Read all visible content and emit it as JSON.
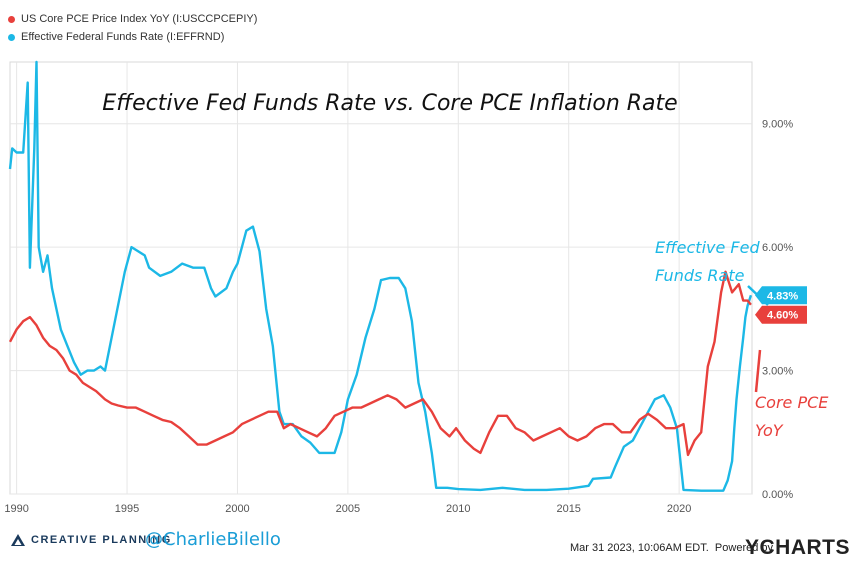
{
  "legend": {
    "series_pce": "US Core PCE Price Index YoY (I:USCCPCEPIY)",
    "series_ffr": "Effective Federal Funds Rate (I:EFFRND)"
  },
  "colors": {
    "pce": "#e8403c",
    "ffr": "#1cb8e6"
  },
  "footer": {
    "brand_text": "CREATIVE PLANNING",
    "handle": "@CharlieBilello",
    "timestamp": "Mar 31 2023, 10:06AM EDT.",
    "powered_by": "Powered by",
    "ycharts": "YCHARTS"
  },
  "chart_data": {
    "type": "line",
    "title": "Effective Fed Funds Rate vs. Core PCE Inflation Rate",
    "xlim": [
      1989.7,
      2023.3
    ],
    "ylim": [
      0,
      10.5
    ],
    "x_ticks": [
      1990,
      1995,
      2000,
      2005,
      2010,
      2015,
      2020
    ],
    "x_tick_labels": [
      "1990",
      "1995",
      "2000",
      "2005",
      "2010",
      "2015",
      "2020"
    ],
    "y_ticks": [
      0,
      3,
      6,
      9
    ],
    "y_tick_labels": [
      "0.00%",
      "3.00%",
      "6.00%",
      "9.00%"
    ],
    "grid": true,
    "legend_position": "top-left",
    "annotations": {
      "ffr_label_line1": "Effective Fed",
      "ffr_label_line2": "Funds Rate",
      "pce_label_line1": "Core PCE",
      "pce_label_line2": "YoY",
      "ffr_last_badge": "4.83%",
      "pce_last_badge": "4.60%"
    },
    "series": [
      {
        "name": "Effective Federal Funds Rate (I:EFFRND)",
        "color": "#1cb8e6",
        "points": [
          [
            1989.7,
            7.9
          ],
          [
            1989.8,
            8.4
          ],
          [
            1990.0,
            8.3
          ],
          [
            1990.3,
            8.3
          ],
          [
            1990.5,
            10.0
          ],
          [
            1990.6,
            5.5
          ],
          [
            1990.8,
            8.4
          ],
          [
            1990.9,
            10.5
          ],
          [
            1991.0,
            6.0
          ],
          [
            1991.2,
            5.4
          ],
          [
            1991.4,
            5.8
          ],
          [
            1991.6,
            5.0
          ],
          [
            1991.8,
            4.5
          ],
          [
            1992.0,
            4.0
          ],
          [
            1992.3,
            3.6
          ],
          [
            1992.6,
            3.2
          ],
          [
            1992.9,
            2.9
          ],
          [
            1993.2,
            3.0
          ],
          [
            1993.5,
            3.0
          ],
          [
            1993.8,
            3.1
          ],
          [
            1994.0,
            3.0
          ],
          [
            1994.3,
            3.8
          ],
          [
            1994.6,
            4.6
          ],
          [
            1994.9,
            5.4
          ],
          [
            1995.2,
            6.0
          ],
          [
            1995.5,
            5.9
          ],
          [
            1995.8,
            5.8
          ],
          [
            1996.0,
            5.5
          ],
          [
            1996.5,
            5.3
          ],
          [
            1997.0,
            5.4
          ],
          [
            1997.5,
            5.6
          ],
          [
            1998.0,
            5.5
          ],
          [
            1998.5,
            5.5
          ],
          [
            1998.8,
            5.0
          ],
          [
            1999.0,
            4.8
          ],
          [
            1999.5,
            5.0
          ],
          [
            1999.8,
            5.4
          ],
          [
            2000.0,
            5.6
          ],
          [
            2000.4,
            6.4
          ],
          [
            2000.7,
            6.5
          ],
          [
            2001.0,
            5.9
          ],
          [
            2001.3,
            4.5
          ],
          [
            2001.6,
            3.6
          ],
          [
            2001.9,
            2.0
          ],
          [
            2002.1,
            1.7
          ],
          [
            2002.5,
            1.7
          ],
          [
            2002.9,
            1.4
          ],
          [
            2003.3,
            1.25
          ],
          [
            2003.7,
            1.0
          ],
          [
            2004.0,
            1.0
          ],
          [
            2004.4,
            1.0
          ],
          [
            2004.7,
            1.5
          ],
          [
            2005.0,
            2.3
          ],
          [
            2005.4,
            2.9
          ],
          [
            2005.8,
            3.8
          ],
          [
            2006.2,
            4.5
          ],
          [
            2006.5,
            5.2
          ],
          [
            2006.9,
            5.25
          ],
          [
            2007.3,
            5.25
          ],
          [
            2007.6,
            5.0
          ],
          [
            2007.9,
            4.2
          ],
          [
            2008.2,
            2.7
          ],
          [
            2008.5,
            2.0
          ],
          [
            2008.8,
            1.0
          ],
          [
            2009.0,
            0.15
          ],
          [
            2009.5,
            0.15
          ],
          [
            2010.0,
            0.12
          ],
          [
            2011.0,
            0.1
          ],
          [
            2012.0,
            0.15
          ],
          [
            2013.0,
            0.1
          ],
          [
            2014.0,
            0.1
          ],
          [
            2015.0,
            0.13
          ],
          [
            2015.9,
            0.2
          ],
          [
            2016.1,
            0.37
          ],
          [
            2016.9,
            0.4
          ],
          [
            2017.1,
            0.66
          ],
          [
            2017.5,
            1.15
          ],
          [
            2017.9,
            1.3
          ],
          [
            2018.2,
            1.6
          ],
          [
            2018.5,
            1.9
          ],
          [
            2018.9,
            2.3
          ],
          [
            2019.3,
            2.4
          ],
          [
            2019.6,
            2.1
          ],
          [
            2019.9,
            1.6
          ],
          [
            2020.2,
            0.1
          ],
          [
            2020.6,
            0.09
          ],
          [
            2021.0,
            0.08
          ],
          [
            2021.5,
            0.08
          ],
          [
            2022.0,
            0.08
          ],
          [
            2022.2,
            0.33
          ],
          [
            2022.4,
            0.8
          ],
          [
            2022.5,
            1.6
          ],
          [
            2022.6,
            2.3
          ],
          [
            2022.75,
            3.1
          ],
          [
            2022.9,
            3.8
          ],
          [
            2023.0,
            4.3
          ],
          [
            2023.1,
            4.58
          ],
          [
            2023.25,
            4.83
          ]
        ]
      },
      {
        "name": "US Core PCE Price Index YoY (I:USCCPCEPIY)",
        "color": "#e8403c",
        "points": [
          [
            1989.7,
            3.7
          ],
          [
            1990.0,
            4.0
          ],
          [
            1990.3,
            4.2
          ],
          [
            1990.6,
            4.3
          ],
          [
            1990.9,
            4.1
          ],
          [
            1991.2,
            3.8
          ],
          [
            1991.5,
            3.6
          ],
          [
            1991.8,
            3.5
          ],
          [
            1992.1,
            3.3
          ],
          [
            1992.4,
            3.0
          ],
          [
            1992.7,
            2.9
          ],
          [
            1993.0,
            2.7
          ],
          [
            1993.3,
            2.6
          ],
          [
            1993.6,
            2.5
          ],
          [
            1994.0,
            2.3
          ],
          [
            1994.3,
            2.2
          ],
          [
            1994.6,
            2.15
          ],
          [
            1995.0,
            2.1
          ],
          [
            1995.4,
            2.1
          ],
          [
            1995.8,
            2.0
          ],
          [
            1996.2,
            1.9
          ],
          [
            1996.6,
            1.8
          ],
          [
            1997.0,
            1.75
          ],
          [
            1997.4,
            1.6
          ],
          [
            1997.8,
            1.4
          ],
          [
            1998.2,
            1.2
          ],
          [
            1998.6,
            1.2
          ],
          [
            1999.0,
            1.3
          ],
          [
            1999.4,
            1.4
          ],
          [
            1999.8,
            1.5
          ],
          [
            2000.2,
            1.7
          ],
          [
            2000.6,
            1.8
          ],
          [
            2001.0,
            1.9
          ],
          [
            2001.4,
            2.0
          ],
          [
            2001.8,
            2.0
          ],
          [
            2002.1,
            1.6
          ],
          [
            2002.4,
            1.7
          ],
          [
            2002.8,
            1.6
          ],
          [
            2003.2,
            1.5
          ],
          [
            2003.6,
            1.4
          ],
          [
            2004.0,
            1.6
          ],
          [
            2004.4,
            1.9
          ],
          [
            2004.8,
            2.0
          ],
          [
            2005.2,
            2.1
          ],
          [
            2005.6,
            2.1
          ],
          [
            2006.0,
            2.2
          ],
          [
            2006.4,
            2.3
          ],
          [
            2006.8,
            2.4
          ],
          [
            2007.2,
            2.3
          ],
          [
            2007.6,
            2.1
          ],
          [
            2008.0,
            2.2
          ],
          [
            2008.4,
            2.3
          ],
          [
            2008.8,
            2.0
          ],
          [
            2009.2,
            1.6
          ],
          [
            2009.6,
            1.4
          ],
          [
            2009.9,
            1.6
          ],
          [
            2010.3,
            1.3
          ],
          [
            2010.7,
            1.1
          ],
          [
            2011.0,
            1.0
          ],
          [
            2011.4,
            1.5
          ],
          [
            2011.8,
            1.9
          ],
          [
            2012.2,
            1.9
          ],
          [
            2012.6,
            1.6
          ],
          [
            2013.0,
            1.5
          ],
          [
            2013.4,
            1.3
          ],
          [
            2013.8,
            1.4
          ],
          [
            2014.2,
            1.5
          ],
          [
            2014.6,
            1.6
          ],
          [
            2015.0,
            1.4
          ],
          [
            2015.4,
            1.3
          ],
          [
            2015.8,
            1.4
          ],
          [
            2016.2,
            1.6
          ],
          [
            2016.6,
            1.7
          ],
          [
            2017.0,
            1.7
          ],
          [
            2017.4,
            1.5
          ],
          [
            2017.8,
            1.5
          ],
          [
            2018.2,
            1.8
          ],
          [
            2018.6,
            1.95
          ],
          [
            2019.0,
            1.8
          ],
          [
            2019.4,
            1.6
          ],
          [
            2019.8,
            1.6
          ],
          [
            2020.2,
            1.7
          ],
          [
            2020.4,
            0.95
          ],
          [
            2020.7,
            1.3
          ],
          [
            2021.0,
            1.5
          ],
          [
            2021.3,
            3.1
          ],
          [
            2021.6,
            3.7
          ],
          [
            2021.9,
            4.9
          ],
          [
            2022.1,
            5.4
          ],
          [
            2022.4,
            4.9
          ],
          [
            2022.7,
            5.1
          ],
          [
            2022.9,
            4.7
          ],
          [
            2023.1,
            4.7
          ],
          [
            2023.25,
            4.6
          ]
        ]
      }
    ]
  }
}
